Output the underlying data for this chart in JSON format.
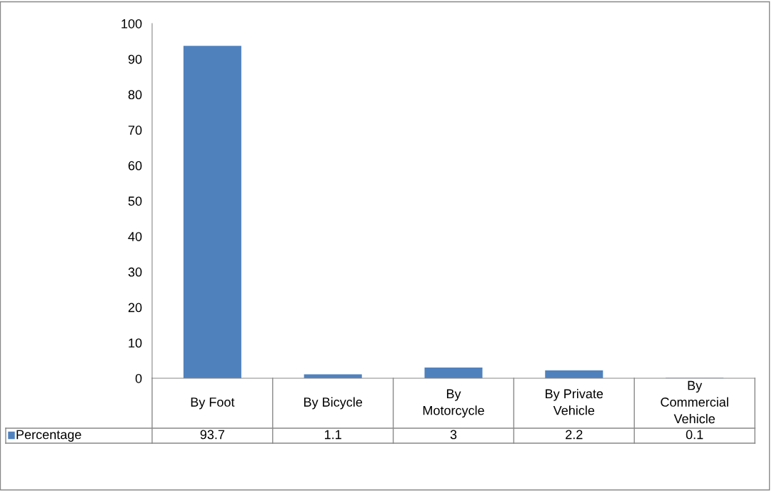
{
  "chart_data": {
    "type": "bar",
    "categories": [
      "By Foot",
      "By Bicycle",
      "By Motorcycle",
      "By Private Vehicle",
      "By Commercial Vehicle"
    ],
    "series": [
      {
        "name": "Percentage",
        "color": "#4f81bd",
        "values": [
          93.7,
          1.1,
          3,
          2.2,
          0.1
        ]
      }
    ],
    "ylim": [
      0,
      100
    ],
    "yticks": [
      0,
      10,
      20,
      30,
      40,
      50,
      60,
      70,
      80,
      90,
      100
    ],
    "grid": false,
    "legend": "bottom",
    "data_labels": true
  }
}
